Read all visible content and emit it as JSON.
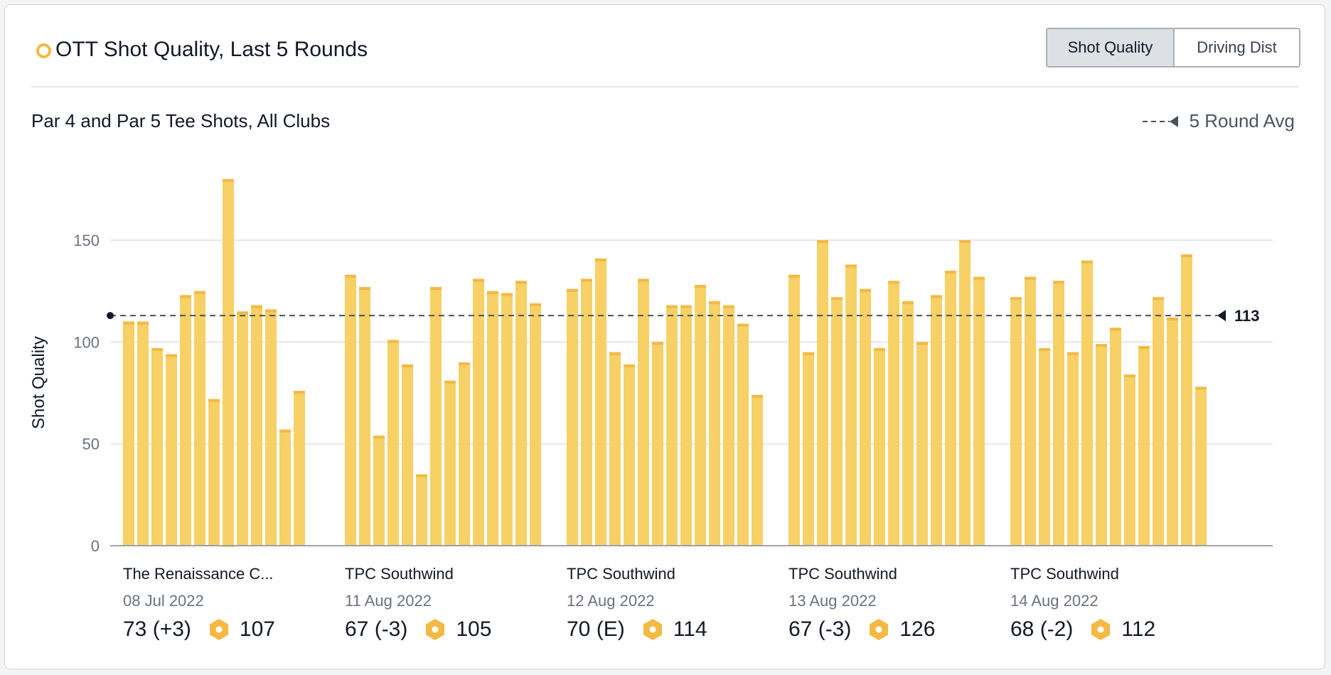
{
  "header": {
    "title": "OTT Shot Quality, Last 5 Rounds",
    "icon": "circle-outline-icon",
    "accent": "#f4b942"
  },
  "toggle": {
    "options": [
      "Shot Quality",
      "Driving Dist"
    ],
    "selected": "Shot Quality"
  },
  "subtitle": "Par 4 and Par 5 Tee Shots, All Clubs",
  "legend": {
    "label": "5 Round Avg"
  },
  "chart_data": {
    "type": "bar",
    "ylabel": "Shot Quality",
    "ylim": [
      0,
      180
    ],
    "yticks": [
      "0",
      "50",
      "100",
      "150"
    ],
    "grid": true,
    "bar_color": "#f7d066",
    "bar_cap_color": "#f4b942",
    "average": {
      "label": "5 Round Avg",
      "value": 113,
      "display": "113"
    },
    "rounds": [
      {
        "course": "The Renaissance C...",
        "date": "08 Jul 2022",
        "score": "73 (+3)",
        "quality": "107",
        "values": [
          110,
          110,
          97,
          94,
          123,
          125,
          72,
          180,
          115,
          118,
          116,
          57,
          76
        ]
      },
      {
        "course": "TPC Southwind",
        "date": "11 Aug 2022",
        "score": "67 (-3)",
        "quality": "105",
        "values": [
          133,
          127,
          54,
          101,
          89,
          35,
          127,
          81,
          90,
          131,
          125,
          124,
          130,
          119
        ]
      },
      {
        "course": "TPC Southwind",
        "date": "12 Aug 2022",
        "score": "70 (E)",
        "quality": "114",
        "values": [
          126,
          131,
          141,
          95,
          89,
          131,
          100,
          118,
          118,
          128,
          120,
          118,
          109,
          74
        ]
      },
      {
        "course": "TPC Southwind",
        "date": "13 Aug 2022",
        "score": "67 (-3)",
        "quality": "126",
        "values": [
          133,
          95,
          150,
          122,
          138,
          126,
          97,
          130,
          120,
          100,
          123,
          135,
          150,
          132
        ]
      },
      {
        "course": "TPC Southwind",
        "date": "14 Aug 2022",
        "score": "68 (-2)",
        "quality": "112",
        "values": [
          122,
          132,
          97,
          130,
          95,
          140,
          99,
          107,
          84,
          98,
          122,
          112,
          143,
          78
        ]
      }
    ]
  }
}
